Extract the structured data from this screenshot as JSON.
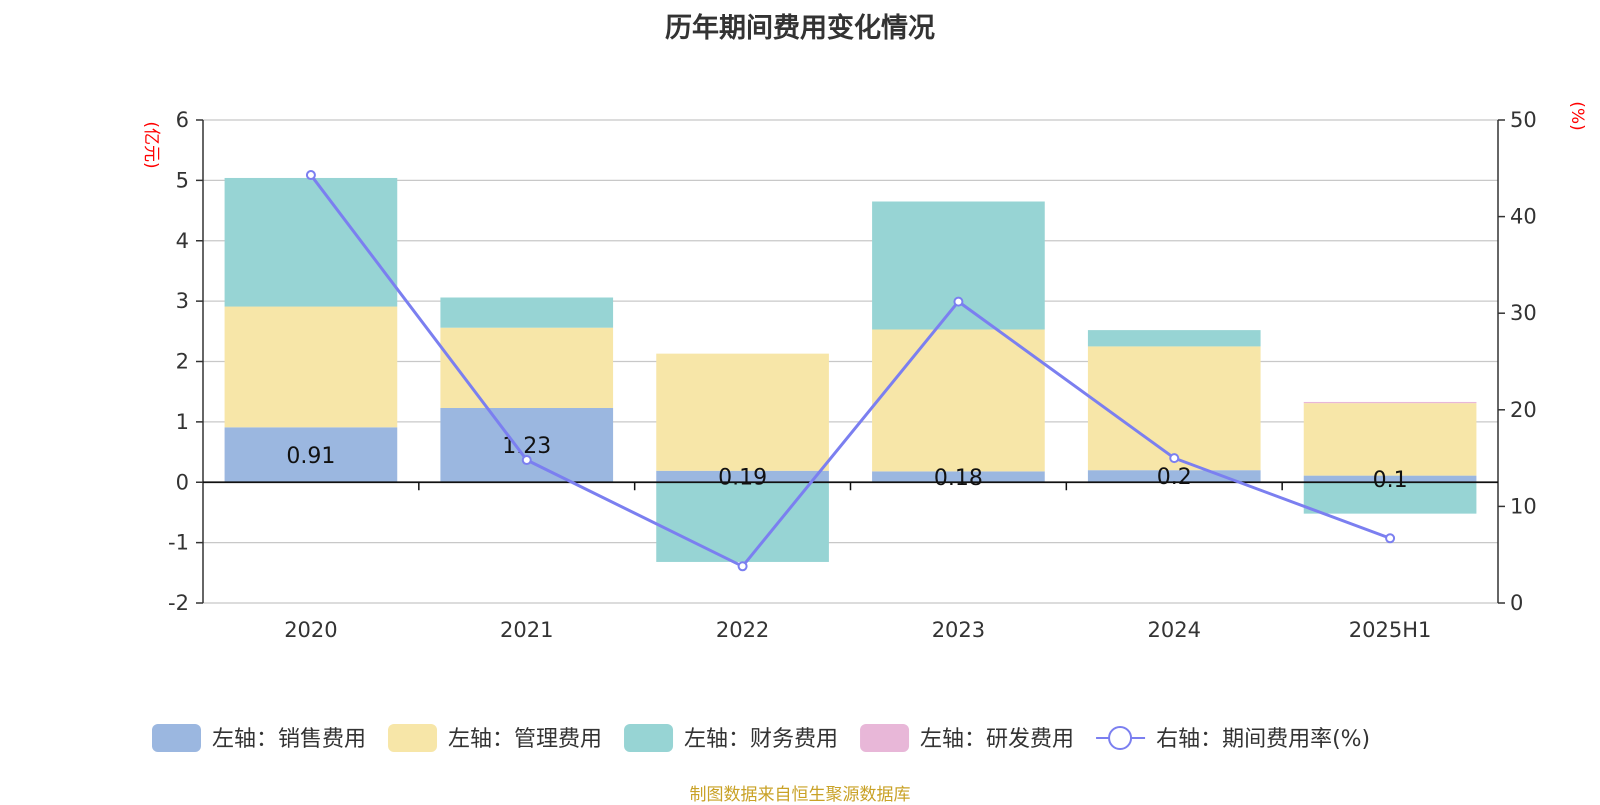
{
  "chart_data": {
    "type": "bar",
    "title": "历年期间费用变化情况",
    "categories": [
      "2020",
      "2021",
      "2022",
      "2023",
      "2024",
      "2025H1"
    ],
    "left_axis": {
      "unit": "(亿元)",
      "ylim": [
        -2,
        6
      ],
      "ticks": [
        6,
        5,
        4,
        3,
        2,
        1,
        0,
        -1,
        -2
      ]
    },
    "right_axis": {
      "unit": "(%)",
      "ylim": [
        0,
        50
      ],
      "ticks": [
        50,
        40,
        30,
        20,
        10,
        0
      ]
    },
    "series": [
      {
        "name": "左轴：销售费用",
        "type": "bar",
        "stack": true,
        "color": "#9bb7e0",
        "values": [
          0.91,
          1.23,
          0.19,
          0.18,
          0.2,
          0.11
        ],
        "labels": [
          "0.91",
          "1.23",
          "0.19",
          "0.18",
          "0.2",
          "0.1"
        ]
      },
      {
        "name": "左轴：管理费用",
        "type": "bar",
        "stack": true,
        "color": "#f7e6a8",
        "values": [
          2.0,
          1.33,
          1.94,
          2.35,
          2.05,
          1.2
        ]
      },
      {
        "name": "左轴：财务费用",
        "type": "bar",
        "stack": true,
        "color": "#97d4d4",
        "values": [
          2.13,
          0.5,
          -1.32,
          2.12,
          0.27,
          -0.52
        ]
      },
      {
        "name": "左轴：研发费用",
        "type": "bar",
        "stack": true,
        "color": "#e8b7d8",
        "values": [
          0,
          0,
          0,
          0,
          0,
          0.02
        ]
      },
      {
        "name": "右轴：期间费用率(%)",
        "type": "line",
        "axis": "right",
        "color": "#7b7ff0",
        "values": [
          44.3,
          14.8,
          3.8,
          31.2,
          15.0,
          6.7
        ]
      }
    ],
    "grid": true,
    "legend": "bottom"
  },
  "footer": {
    "source": "制图数据来自恒生聚源数据库"
  }
}
